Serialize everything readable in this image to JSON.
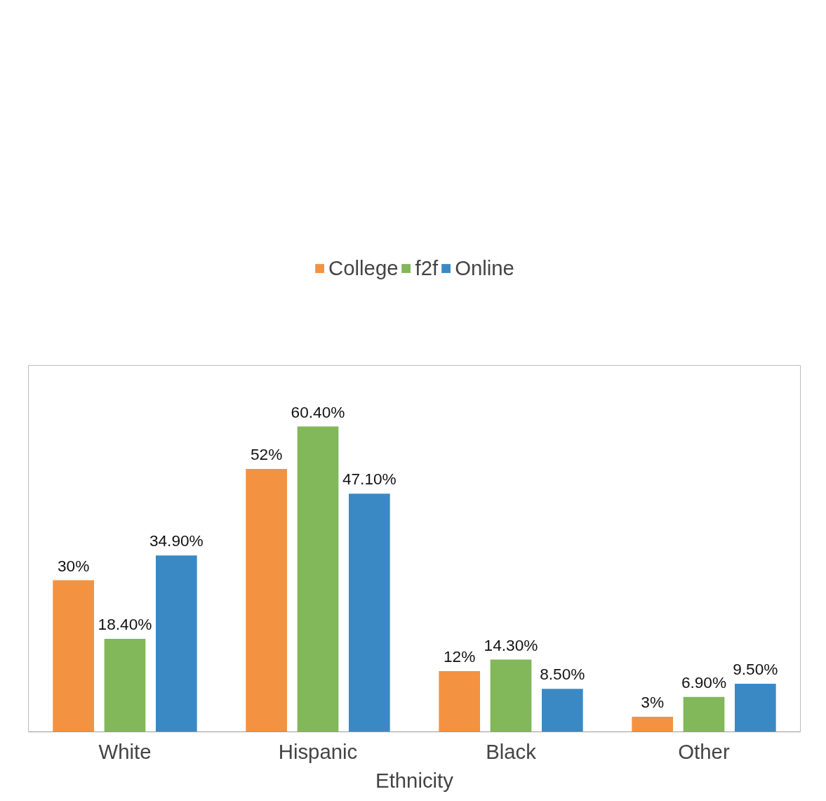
{
  "chart_data": {
    "type": "bar",
    "xlabel": "Ethnicity",
    "categories": [
      "White",
      "Hispanic",
      "Black",
      "Other"
    ],
    "series": [
      {
        "name": "College",
        "color": "#f39241",
        "values": [
          30,
          52,
          12,
          3
        ],
        "value_labels": [
          "30%",
          "52%",
          "12%",
          "3%"
        ]
      },
      {
        "name": "f2f",
        "color": "#82b75a",
        "values": [
          18.4,
          60.4,
          14.3,
          6.9
        ],
        "value_labels": [
          "18.40%",
          "60.40%",
          "14.30%",
          "6.90%"
        ]
      },
      {
        "name": "Online",
        "color": "#3a89c4",
        "values": [
          34.9,
          47.1,
          8.5,
          9.5
        ],
        "value_labels": [
          "34.90%",
          "47.10%",
          "8.50%",
          "9.50%"
        ]
      }
    ],
    "grid": false,
    "legend": "top",
    "tick_labels": "x"
  }
}
